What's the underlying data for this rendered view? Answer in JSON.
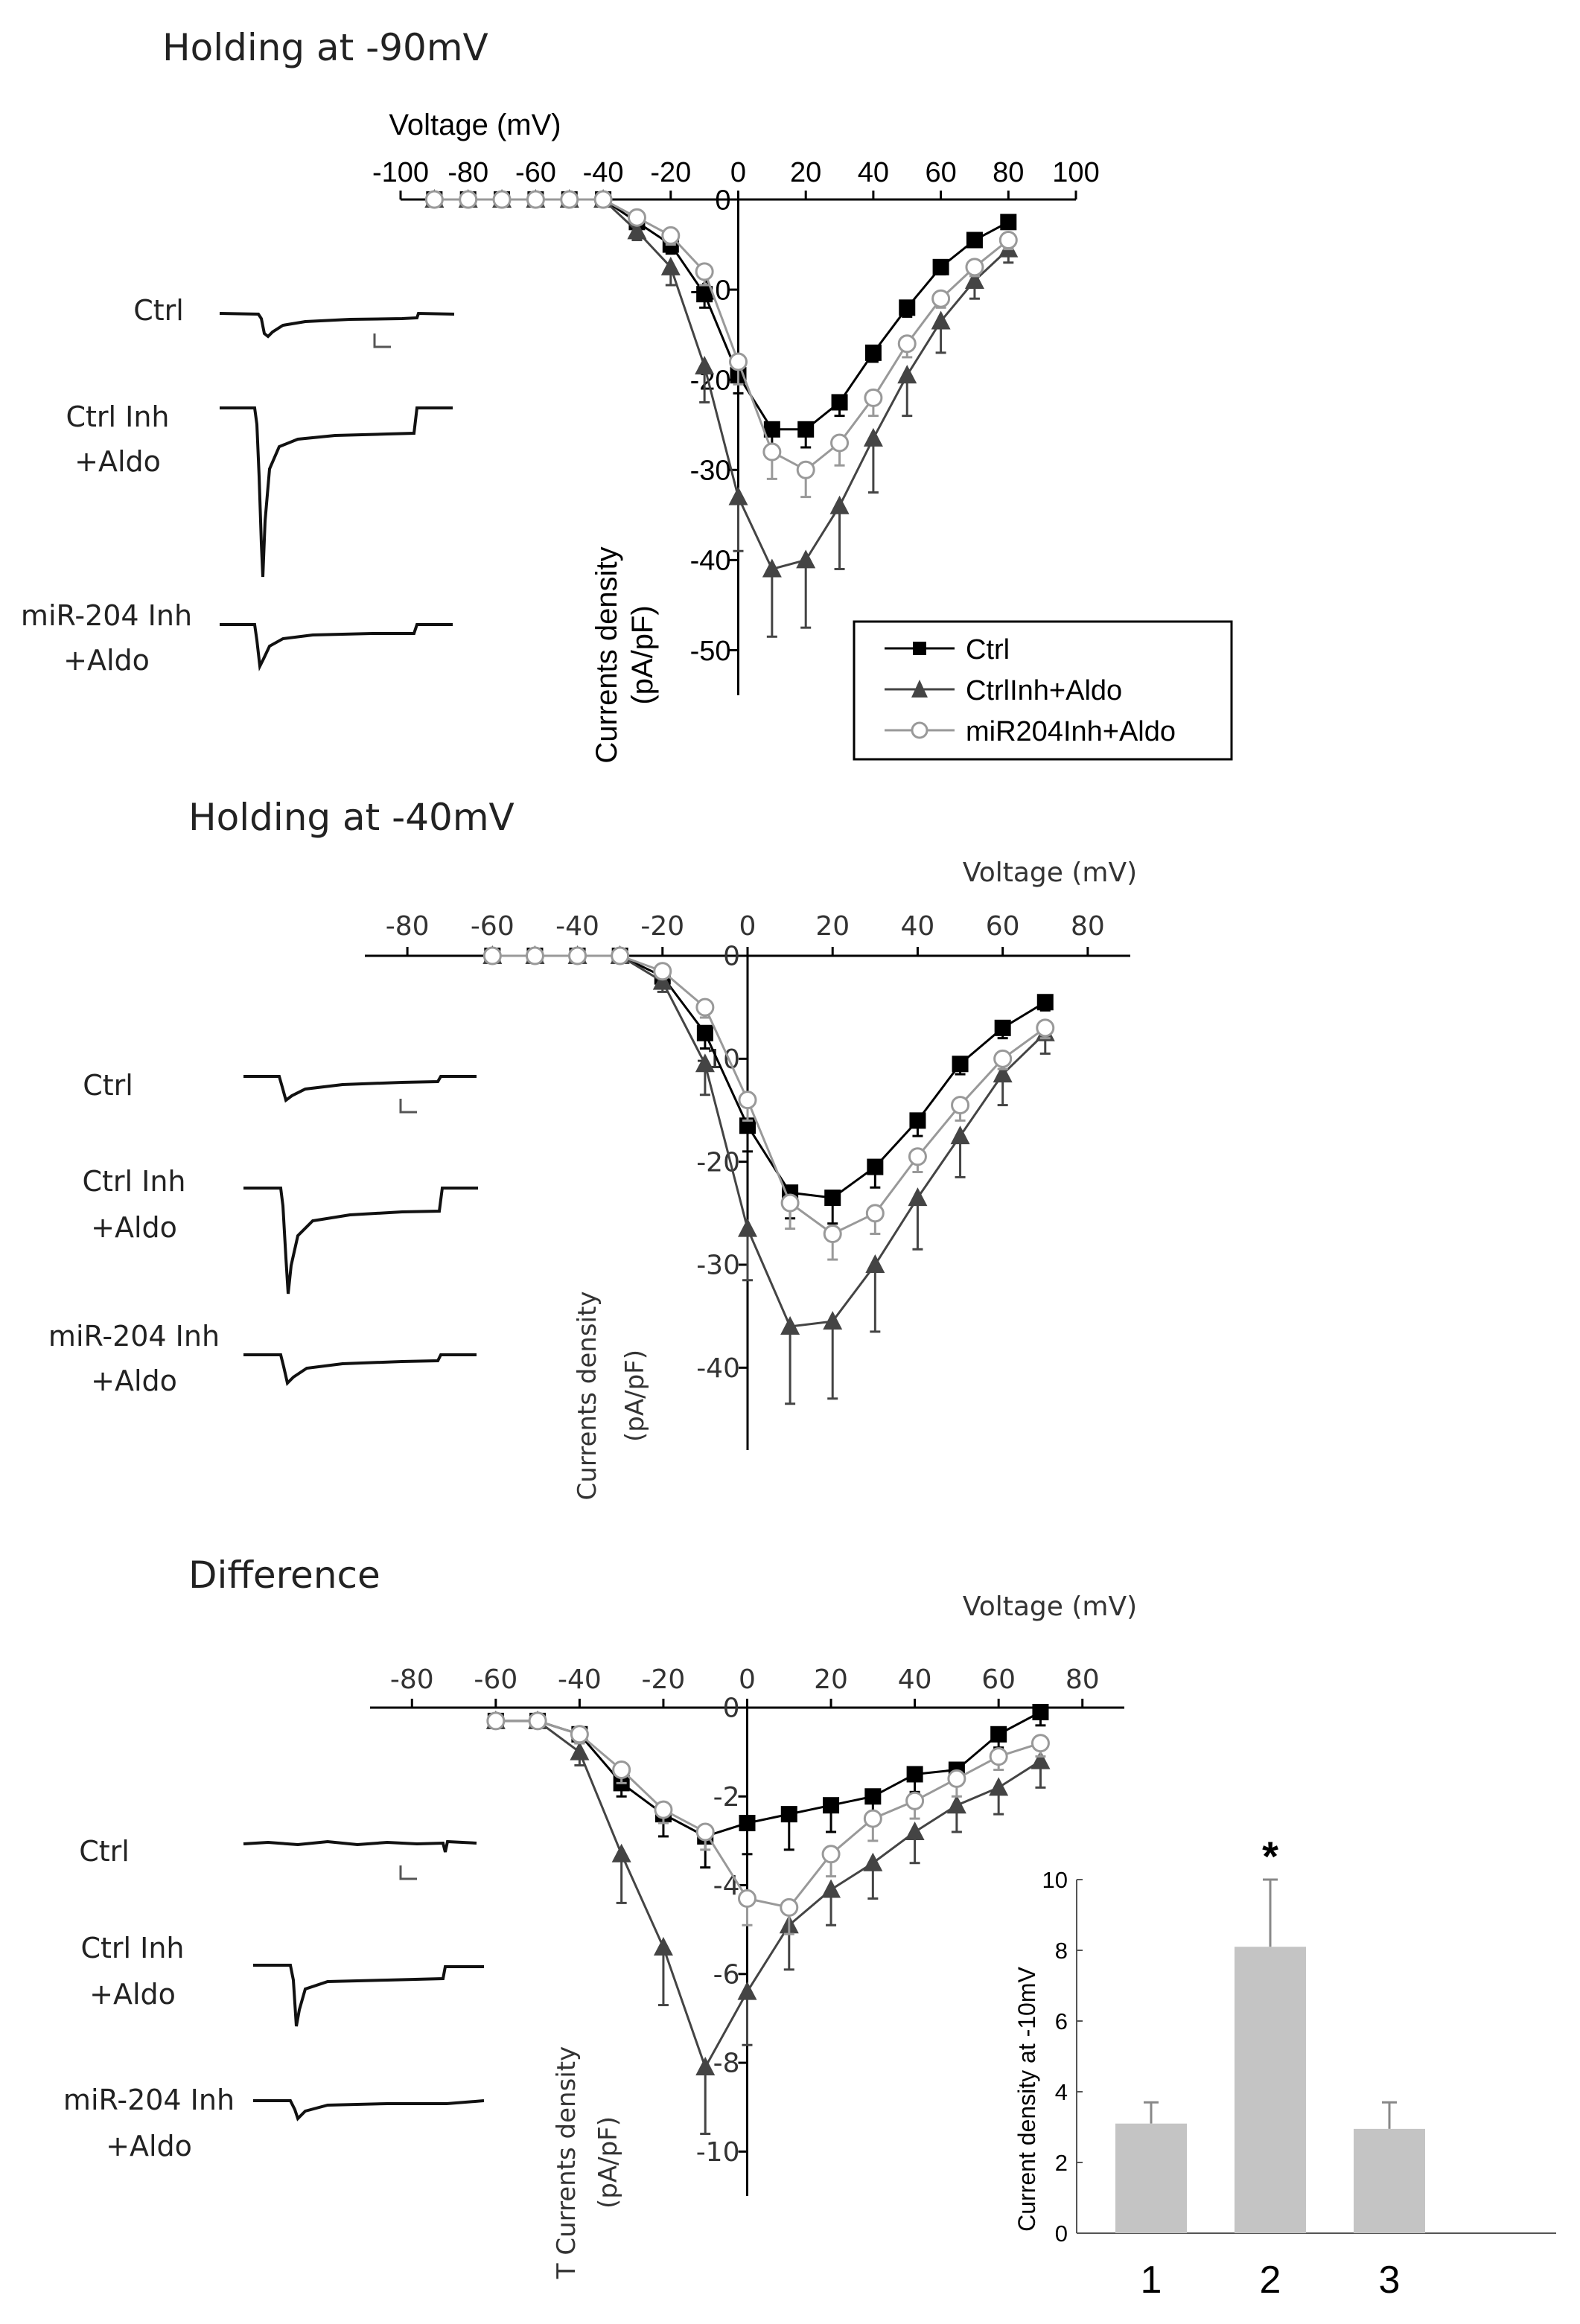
{
  "chart_data": [
    {
      "type": "line",
      "panel_title": "Holding at -90mV",
      "xlabel": "Voltage (mV)",
      "ylabel": [
        "Currents density",
        "(pA/pF)"
      ],
      "xlim": [
        -100,
        100
      ],
      "ylim": [
        -55,
        0
      ],
      "x_ticks": [
        -100,
        -80,
        -60,
        -40,
        -20,
        0,
        20,
        40,
        60,
        80,
        100
      ],
      "y_ticks": [
        0,
        -10,
        -20,
        -30,
        -40,
        -50
      ],
      "x": [
        -90,
        -80,
        -70,
        -60,
        -50,
        -40,
        -30,
        -20,
        -10,
        0,
        10,
        20,
        30,
        40,
        50,
        60,
        70,
        80
      ],
      "series": [
        {
          "name": "Ctrl",
          "color": "#000000",
          "marker": "square",
          "values": [
            0,
            0,
            0,
            0,
            0,
            0,
            -2.5,
            -5,
            -10.5,
            -19.5,
            -25.5,
            -25.5,
            -22.5,
            -17,
            -12,
            -7.5,
            -4.5,
            -2.5
          ],
          "err": [
            0,
            0,
            0,
            0,
            0,
            0,
            0.5,
            1,
            1.5,
            2,
            2,
            2,
            1.5,
            1,
            1,
            0.8,
            0.5,
            0.5
          ]
        },
        {
          "name": "CtrlInh+Aldo",
          "color": "#444444",
          "marker": "triangle",
          "values": [
            0,
            0,
            0,
            0,
            0,
            0,
            -3.5,
            -7.5,
            -18.5,
            -33,
            -41,
            -40,
            -34,
            -26.5,
            -19.5,
            -13.5,
            -9,
            -5.5
          ],
          "err": [
            0,
            0,
            0,
            0,
            0,
            0,
            1,
            2,
            4,
            6,
            7.5,
            7.5,
            7,
            6,
            4.5,
            3.5,
            2,
            1.5
          ]
        },
        {
          "name": "miR204Inh+Aldo",
          "color": "#999999",
          "marker": "circle",
          "values": [
            0,
            0,
            0,
            0,
            0,
            0,
            -2,
            -4,
            -8,
            -18,
            -28,
            -30,
            -27,
            -22,
            -16,
            -11,
            -7.5,
            -4.5
          ],
          "err": [
            0,
            0,
            0,
            0,
            0,
            0,
            0.5,
            1,
            1.5,
            2.5,
            3,
            3,
            2.5,
            2,
            1.5,
            1,
            1,
            1
          ]
        }
      ],
      "legend": "lower-right",
      "trace_labels": [
        "Ctrl",
        "Ctrl Inh\n+Aldo",
        "miR-204 Inh\n+Aldo"
      ]
    },
    {
      "type": "line",
      "panel_title": "Holding at -40mV",
      "xlabel": "Voltage (mV)",
      "ylabel": [
        "Currents density",
        "(pA/pF)"
      ],
      "xlim": [
        -90,
        90
      ],
      "ylim": [
        -48,
        0
      ],
      "x_ticks": [
        -80,
        -60,
        -40,
        -20,
        0,
        20,
        40,
        60,
        80
      ],
      "y_ticks": [
        0,
        -10,
        -20,
        -30,
        -40
      ],
      "x": [
        -60,
        -50,
        -40,
        -30,
        -20,
        -10,
        0,
        10,
        20,
        30,
        40,
        50,
        60,
        70
      ],
      "series": [
        {
          "name": "Ctrl",
          "color": "#000000",
          "marker": "square",
          "values": [
            0,
            0,
            0,
            0,
            -2,
            -7.5,
            -16.5,
            -23,
            -23.5,
            -20.5,
            -16,
            -10.5,
            -7,
            -4.5
          ],
          "err": [
            0,
            0,
            0,
            0,
            0.5,
            1.5,
            2.5,
            2.5,
            2.5,
            2,
            1.5,
            1,
            1,
            0.8
          ]
        },
        {
          "name": "CtrlInh+Aldo",
          "color": "#444444",
          "marker": "triangle",
          "values": [
            0,
            0,
            0,
            0,
            -2.5,
            -10.5,
            -26.5,
            -36,
            -35.5,
            -30,
            -23.5,
            -17.5,
            -11.5,
            -7.5
          ],
          "err": [
            0,
            0,
            0,
            0,
            1,
            3,
            5,
            7.5,
            7.5,
            6.5,
            5,
            4,
            3,
            2
          ]
        },
        {
          "name": "miR204Inh+Aldo",
          "color": "#999999",
          "marker": "circle",
          "values": [
            0,
            0,
            0,
            0,
            -1.5,
            -5,
            -14,
            -24,
            -27,
            -25,
            -19.5,
            -14.5,
            -10,
            -7
          ],
          "err": [
            0,
            0,
            0,
            0,
            0.5,
            1,
            2,
            2.5,
            2.5,
            2,
            1.5,
            1.5,
            1,
            1
          ]
        }
      ],
      "trace_labels": [
        "Ctrl",
        "Ctrl Inh\n+Aldo",
        "miR-204 Inh\n+Aldo"
      ]
    },
    {
      "type": "line",
      "panel_title": "Difference",
      "xlabel": "Voltage (mV)",
      "ylabel": [
        "T Currents density",
        "(pA/pF)"
      ],
      "xlim": [
        -90,
        90
      ],
      "ylim": [
        -11,
        0
      ],
      "x_ticks": [
        -80,
        -60,
        -40,
        -20,
        0,
        20,
        40,
        60,
        80
      ],
      "y_ticks": [
        0,
        -2,
        -4,
        -6,
        -8,
        -10
      ],
      "x": [
        -60,
        -50,
        -40,
        -30,
        -20,
        -10,
        0,
        10,
        20,
        30,
        40,
        50,
        60,
        70
      ],
      "series": [
        {
          "name": "Ctrl",
          "color": "#000000",
          "marker": "square",
          "values": [
            -0.3,
            -0.3,
            -0.6,
            -1.7,
            -2.4,
            -2.9,
            -2.6,
            -2.4,
            -2.2,
            -2.0,
            -1.5,
            -1.4,
            -0.6,
            -0.1
          ],
          "err": [
            0.1,
            0.1,
            0.2,
            0.3,
            0.5,
            0.7,
            0.7,
            0.8,
            0.6,
            0.5,
            0.4,
            0.3,
            0.3,
            0.3
          ]
        },
        {
          "name": "CtrlInh+Aldo",
          "color": "#444444",
          "marker": "triangle",
          "values": [
            -0.3,
            -0.3,
            -1.0,
            -3.3,
            -5.4,
            -8.1,
            -6.4,
            -4.9,
            -4.1,
            -3.5,
            -2.8,
            -2.2,
            -1.8,
            -1.2
          ],
          "err": [
            0.1,
            0.1,
            0.3,
            1.1,
            1.3,
            1.5,
            1.2,
            1,
            0.8,
            0.8,
            0.7,
            0.6,
            0.6,
            0.6
          ]
        },
        {
          "name": "miR204Inh+Aldo",
          "color": "#999999",
          "marker": "circle",
          "values": [
            -0.3,
            -0.3,
            -0.6,
            -1.4,
            -2.3,
            -2.8,
            -4.3,
            -4.5,
            -3.3,
            -2.5,
            -2.1,
            -1.6,
            -1.1,
            -0.8
          ],
          "err": [
            0.1,
            0.1,
            0.2,
            0.3,
            0.3,
            0.4,
            0.6,
            0.6,
            0.5,
            0.5,
            0.4,
            0.4,
            0.3,
            0.3
          ]
        }
      ],
      "trace_labels": [
        "Ctrl",
        "Ctrl Inh\n+Aldo",
        "miR-204 Inh\n+Aldo"
      ]
    },
    {
      "type": "bar",
      "categories": [
        "1",
        "2",
        "3"
      ],
      "values": [
        3.1,
        8.1,
        2.95
      ],
      "errors": [
        0.6,
        1.9,
        0.75
      ],
      "annotations": [
        "",
        "*",
        ""
      ],
      "ylabel": "Current density at -10mV",
      "ylim": [
        0,
        10
      ],
      "y_ticks": [
        0,
        2,
        4,
        6,
        8,
        10
      ],
      "bar_color": "#c4c4c4"
    }
  ]
}
